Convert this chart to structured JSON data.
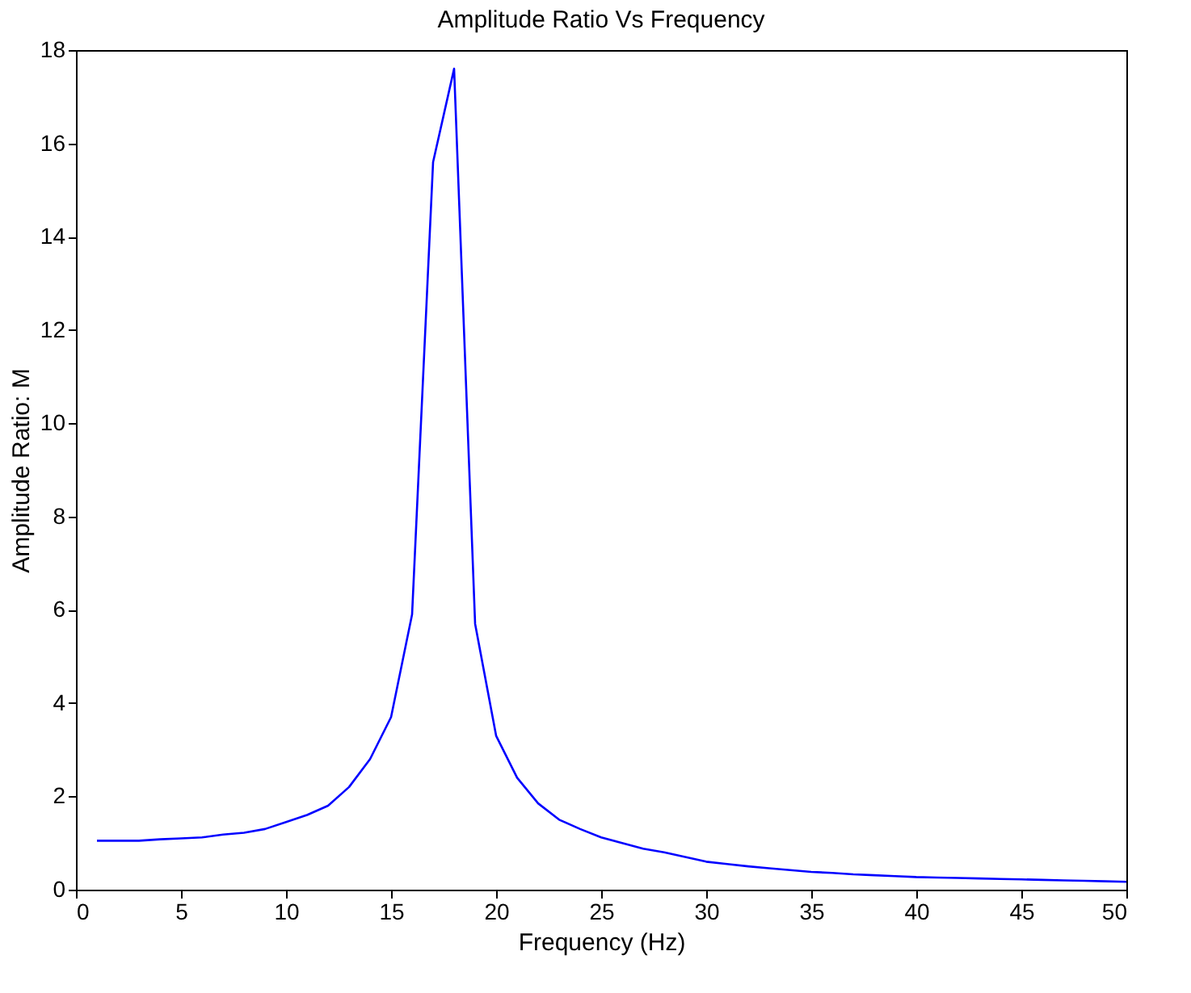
{
  "chart_data": {
    "type": "line",
    "title": "Amplitude Ratio Vs Frequency",
    "xlabel": "Frequency (Hz)",
    "ylabel": "Amplitude Ratio: M",
    "x": [
      1,
      2,
      3,
      4,
      5,
      6,
      7,
      8,
      9,
      10,
      11,
      12,
      13,
      14,
      15,
      16,
      17,
      18,
      19,
      20,
      21,
      22,
      23,
      24,
      25,
      26,
      27,
      28,
      29,
      30,
      31,
      32,
      33,
      34,
      35,
      36,
      37,
      38,
      39,
      40,
      41,
      42,
      43,
      44,
      45,
      46,
      47,
      48,
      49,
      50
    ],
    "series": [
      {
        "color": "#0000ff",
        "values": [
          1.05,
          1.05,
          1.05,
          1.08,
          1.1,
          1.12,
          1.18,
          1.22,
          1.3,
          1.45,
          1.6,
          1.8,
          2.2,
          2.8,
          3.7,
          5.9,
          15.6,
          17.6,
          5.7,
          3.3,
          2.4,
          1.85,
          1.5,
          1.3,
          1.12,
          1.0,
          0.88,
          0.8,
          0.7,
          0.6,
          0.55,
          0.5,
          0.46,
          0.42,
          0.38,
          0.36,
          0.33,
          0.31,
          0.29,
          0.27,
          0.26,
          0.25,
          0.24,
          0.23,
          0.22,
          0.21,
          0.2,
          0.19,
          0.18,
          0.17
        ]
      }
    ],
    "xlim": [
      0,
      50
    ],
    "xticks": [
      0,
      5,
      10,
      15,
      20,
      25,
      30,
      35,
      40,
      45,
      50
    ],
    "ylim": [
      0,
      18
    ],
    "yticks": [
      0,
      2,
      4,
      6,
      8,
      10,
      12,
      14,
      16,
      18
    ],
    "grid": false,
    "legend": false,
    "marker": "none",
    "line_style": "solid"
  }
}
